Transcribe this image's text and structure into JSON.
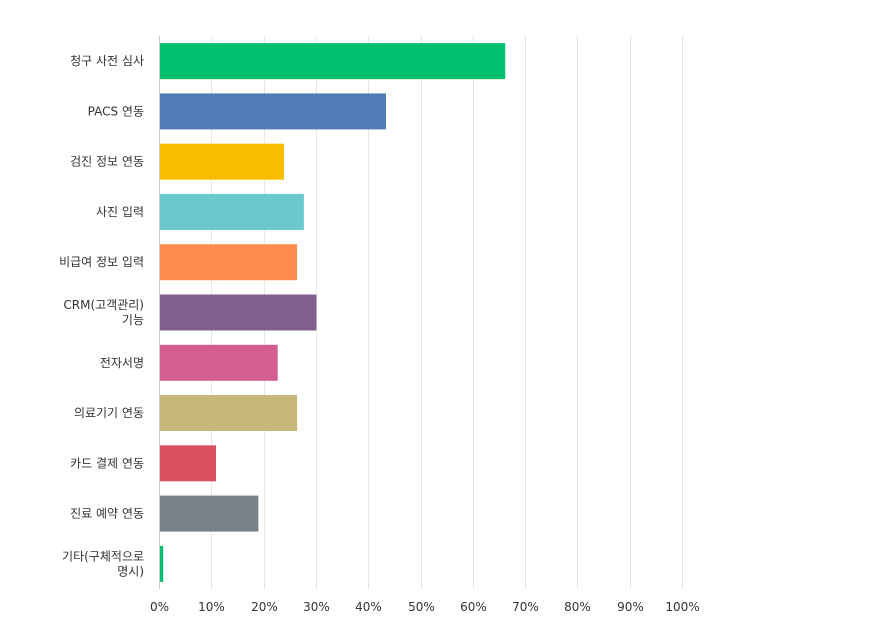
{
  "chart_data": {
    "type": "bar",
    "orientation": "horizontal",
    "title": "",
    "xlabel": "",
    "ylabel": "",
    "xlim": [
      0,
      100
    ],
    "x_ticks": [
      "0%",
      "10%",
      "20%",
      "30%",
      "40%",
      "50%",
      "60%",
      "70%",
      "80%",
      "90%",
      "100%"
    ],
    "grid": true,
    "categories": [
      [
        "청구 사전 심사"
      ],
      [
        "PACS 연동"
      ],
      [
        "검진 정보 연동"
      ],
      [
        "사진 입력"
      ],
      [
        "비급여 정보 입력"
      ],
      [
        "CRM(고객관리)",
        "기능"
      ],
      [
        "전자서명"
      ],
      [
        "의료기기 연동"
      ],
      [
        "카드 결제 연동"
      ],
      [
        "진료 예약 연동"
      ],
      [
        "기타(구체적으로",
        "명시)"
      ]
    ],
    "values": [
      66.2,
      43.4,
      23.9,
      27.7,
      26.4,
      30.1,
      22.7,
      26.4,
      10.9,
      19.0,
      0.8
    ],
    "colors": [
      "#00bf6f",
      "#507cb6",
      "#f9be00",
      "#6bc8cd",
      "#ff8b4f",
      "#7f5f90",
      "#d25f90",
      "#c7b879",
      "#dc5060",
      "#798186",
      "#00bf6f"
    ]
  }
}
